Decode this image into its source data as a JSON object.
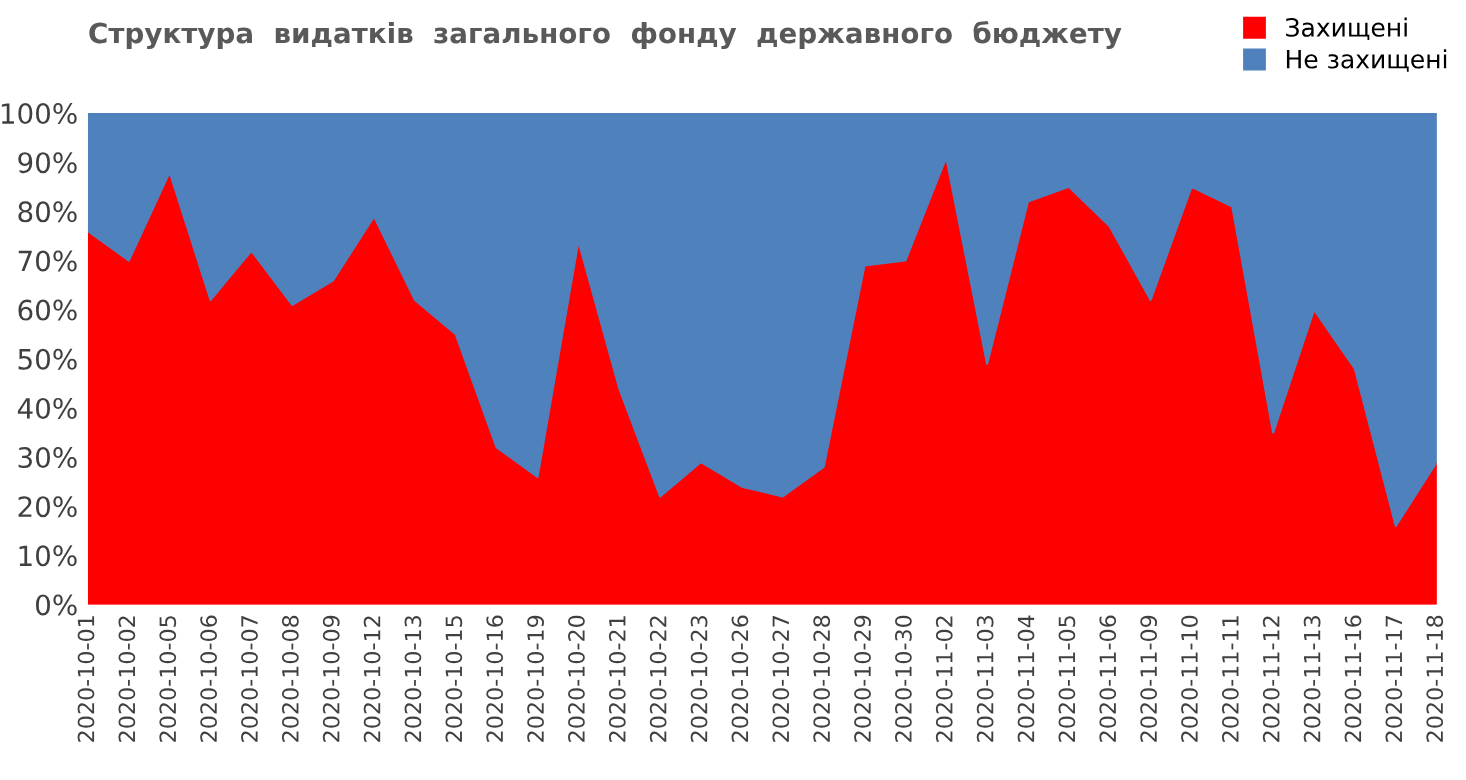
{
  "chart_data": {
    "type": "area",
    "stacked": true,
    "title": "Структура  видатків  загального  фонду  державного  бюджету",
    "categories": [
      "2020-10-01",
      "2020-10-02",
      "2020-10-05",
      "2020-10-06",
      "2020-10-07",
      "2020-10-08",
      "2020-10-09",
      "2020-10-12",
      "2020-10-13",
      "2020-10-15",
      "2020-10-16",
      "2020-10-19",
      "2020-10-20",
      "2020-10-21",
      "2020-10-22",
      "2020-10-23",
      "2020-10-26",
      "2020-10-27",
      "2020-10-28",
      "2020-10-29",
      "2020-10-30",
      "2020-11-02",
      "2020-11-03",
      "2020-11-04",
      "2020-11-05",
      "2020-11-06",
      "2020-11-09",
      "2020-11-10",
      "2020-11-11",
      "2020-11-12",
      "2020-11-13",
      "2020-11-16",
      "2020-11-17",
      "2020-11-18"
    ],
    "series": [
      {
        "name": "Захищені",
        "color": "#ff0000",
        "values": [
          76,
          70,
          88,
          62,
          72,
          61,
          66,
          79,
          62,
          55,
          32,
          26,
          74,
          44,
          22,
          29,
          24,
          22,
          28,
          69,
          70,
          91,
          49,
          82,
          85,
          77,
          62,
          85,
          81,
          35,
          60,
          48,
          16,
          29
        ]
      },
      {
        "name": "Не захищені",
        "color": "#4f81bd",
        "values": [
          24,
          30,
          12,
          38,
          28,
          39,
          34,
          21,
          38,
          45,
          68,
          74,
          26,
          56,
          78,
          71,
          76,
          78,
          72,
          31,
          30,
          9,
          51,
          18,
          15,
          23,
          38,
          15,
          19,
          65,
          40,
          52,
          84,
          71
        ]
      }
    ],
    "ylim": [
      0,
      100
    ],
    "yticks": [
      {
        "value": 0,
        "label": "0%"
      },
      {
        "value": 10,
        "label": "10%"
      },
      {
        "value": 20,
        "label": "20%"
      },
      {
        "value": 30,
        "label": "30%"
      },
      {
        "value": 40,
        "label": "40%"
      },
      {
        "value": 50,
        "label": "50%"
      },
      {
        "value": 60,
        "label": "60%"
      },
      {
        "value": 70,
        "label": "70%"
      },
      {
        "value": 80,
        "label": "80%"
      },
      {
        "value": 90,
        "label": "90%"
      },
      {
        "value": 100,
        "label": "100%"
      }
    ],
    "legend": "top right"
  }
}
